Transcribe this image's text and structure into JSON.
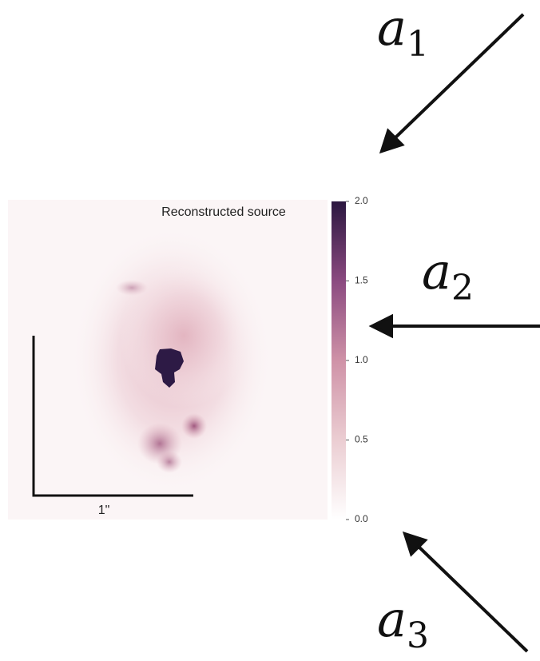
{
  "panel": {
    "title": "Reconstructed source",
    "scale_bar": "1\"",
    "colorbar": {
      "lim": [
        0,
        2
      ],
      "ticks": [
        {
          "value": 0,
          "label": "0.0"
        },
        {
          "value": 0.5,
          "label": "0.5"
        },
        {
          "value": 1,
          "label": "1.0"
        },
        {
          "value": 1.5,
          "label": "1.5"
        },
        {
          "value": 2,
          "label": "2.0"
        }
      ]
    }
  },
  "arrows": [
    {
      "symbol": "a",
      "subscript": "1"
    },
    {
      "symbol": "a",
      "subscript": "2"
    },
    {
      "symbol": "a",
      "subscript": "3"
    }
  ]
}
